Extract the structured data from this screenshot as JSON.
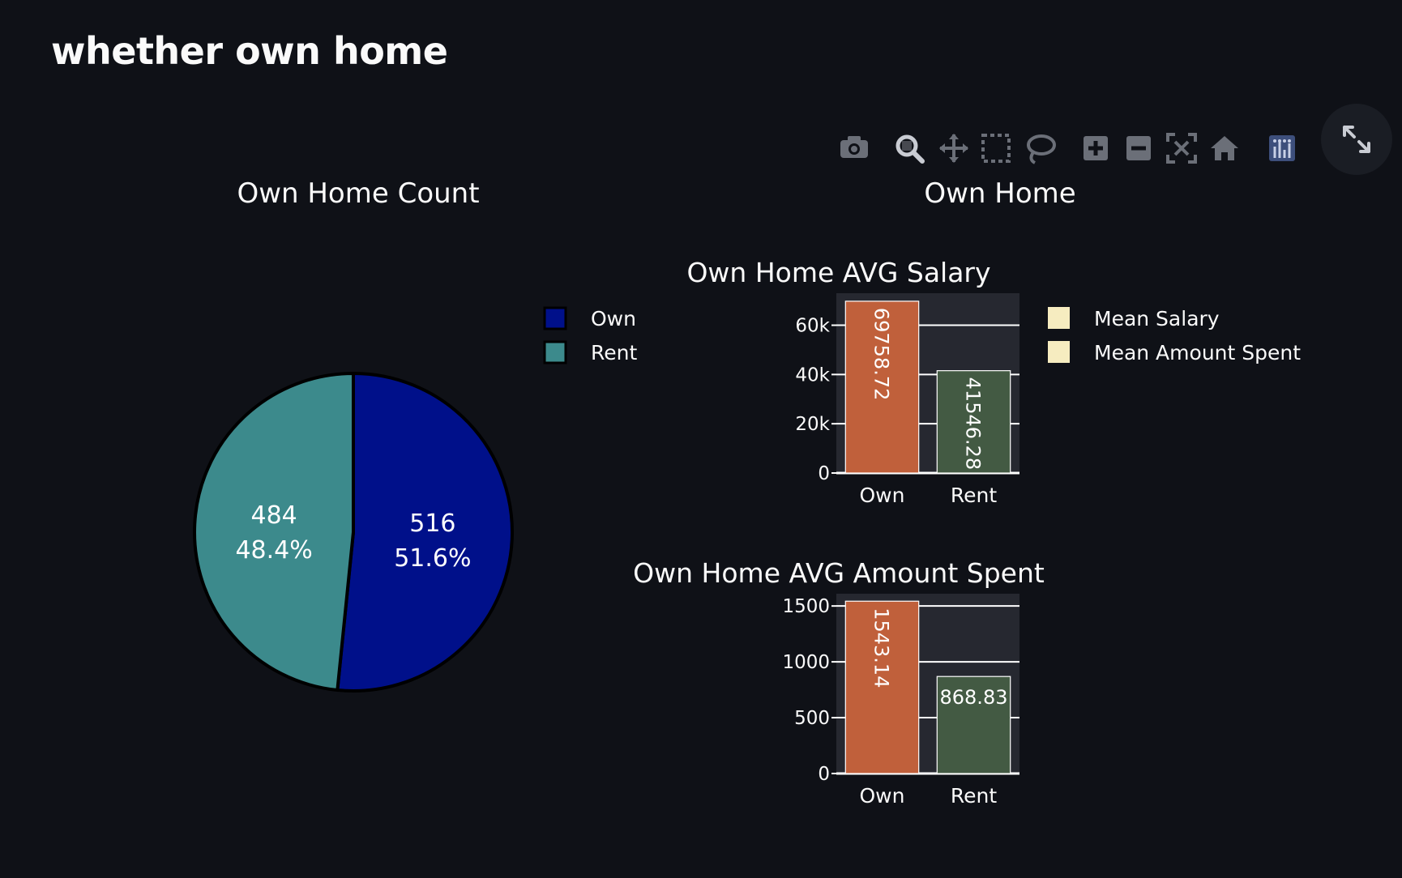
{
  "page": {
    "title": "whether own home"
  },
  "modebar": {
    "buttons": [
      "camera-icon",
      "zoom-icon",
      "pan-icon",
      "box-select-icon",
      "lasso-select-icon",
      "zoom-in-icon",
      "zoom-out-icon",
      "autoscale-icon",
      "reset-axes-icon",
      "plotly-logo-icon"
    ],
    "fullscreen_icon": "fullscreen-icon"
  },
  "colors": {
    "own_pie": "#00108a",
    "rent_pie": "#3c8a8c",
    "own_bar": "#c0603b",
    "rent_bar": "#435a43",
    "legend_swatch": "#f6ecc0",
    "plot_bg": "#262830"
  },
  "chart_data": [
    {
      "type": "pie",
      "title": "Own Home  Count",
      "labels": [
        "Own",
        "Rent"
      ],
      "values": [
        516,
        484
      ],
      "percent_labels": [
        "51.6%",
        "48.4%"
      ],
      "legend": [
        "Own",
        "Rent"
      ]
    },
    {
      "type": "bar",
      "title": "Own Home AVG Salary",
      "group_title": "Own Home",
      "categories": [
        "Own",
        "Rent"
      ],
      "values": [
        69758.72,
        41546.28
      ],
      "value_labels": [
        "69758.72",
        "41546.28"
      ],
      "series_name": "Mean Salary",
      "yticks": [
        0,
        20000,
        40000,
        60000
      ],
      "ytick_labels": [
        "0",
        "20k",
        "40k",
        "60k"
      ],
      "ylim": [
        0,
        73000
      ]
    },
    {
      "type": "bar",
      "title": "Own Home AVG Amount Spent",
      "categories": [
        "Own",
        "Rent"
      ],
      "values": [
        1543.14,
        868.83
      ],
      "value_labels": [
        "1543.14",
        "868.83"
      ],
      "series_name": "Mean Amount Spent",
      "yticks": [
        0,
        500,
        1000,
        1500
      ],
      "ytick_labels": [
        "0",
        "500",
        "1000",
        "1500"
      ],
      "ylim": [
        0,
        1610
      ]
    }
  ],
  "bar_legend": [
    "Mean Salary",
    "Mean Amount Spent"
  ]
}
